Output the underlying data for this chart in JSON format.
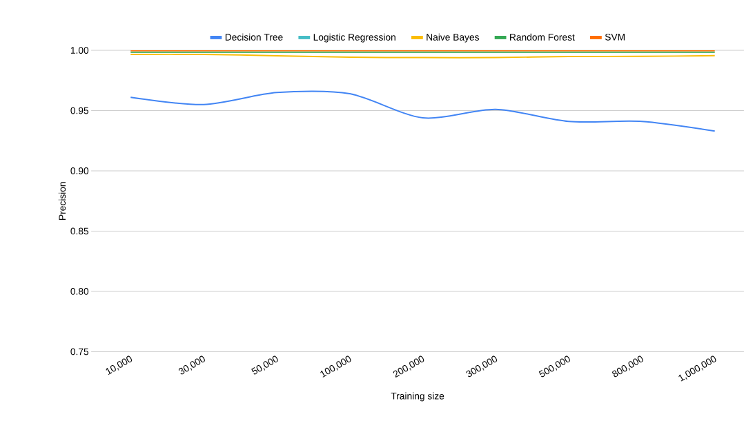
{
  "chart_data": {
    "type": "line",
    "xlabel": "Training size",
    "ylabel": "Precision",
    "categories": [
      "10,000",
      "30,000",
      "50,000",
      "100,000",
      "200,000",
      "300,000",
      "500,000",
      "800,000",
      "1,000,000"
    ],
    "series": [
      {
        "name": "Decision Tree",
        "color": "#4285f4",
        "values": [
          0.961,
          0.955,
          0.965,
          0.964,
          0.944,
          0.951,
          0.941,
          0.941,
          0.933
        ]
      },
      {
        "name": "Logistic Regression",
        "color": "#46bdc6",
        "values": [
          null,
          null,
          null,
          null,
          null,
          null,
          null,
          null,
          null
        ]
      },
      {
        "name": "Naive Bayes",
        "color": "#fbbc04",
        "values": [
          0.9966,
          0.9966,
          0.9955,
          0.9943,
          0.994,
          0.994,
          0.9949,
          0.995,
          0.9956
        ]
      },
      {
        "name": "Random Forest",
        "color": "#34a853",
        "values": [
          0.9984,
          0.9984,
          0.9984,
          0.9984,
          0.9984,
          0.9984,
          0.9984,
          0.9984,
          0.9984
        ]
      },
      {
        "name": "SVM",
        "color": "#ff6d01",
        "values": [
          0.9997,
          0.9997,
          0.9997,
          0.9997,
          0.9997,
          0.9997,
          0.9997,
          0.9997,
          0.9997
        ]
      }
    ],
    "ylim": [
      0.75,
      1.0
    ],
    "yticks": [
      {
        "value": 0.75,
        "label": "0.75"
      },
      {
        "value": 0.8,
        "label": "0.80"
      },
      {
        "value": 0.85,
        "label": "0.85"
      },
      {
        "value": 0.9,
        "label": "0.90"
      },
      {
        "value": 0.95,
        "label": "0.95"
      },
      {
        "value": 1.0,
        "label": "1.00"
      }
    ],
    "grid": "y",
    "legend": "top",
    "marker": "none",
    "line_style": "solid"
  }
}
